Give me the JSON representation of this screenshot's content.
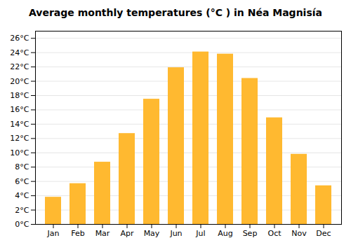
{
  "chart_data": {
    "type": "bar",
    "title": "Average monthly temperatures (°C ) in Néa Magnisía",
    "categories": [
      "Jan",
      "Feb",
      "Mar",
      "Apr",
      "May",
      "Jun",
      "Jul",
      "Aug",
      "Sep",
      "Oct",
      "Nov",
      "Dec"
    ],
    "values": [
      3.8,
      5.7,
      8.7,
      12.7,
      17.5,
      21.9,
      24.1,
      23.8,
      20.4,
      14.9,
      9.8,
      5.4
    ],
    "color": "#FFB930",
    "ylim": [
      0,
      27
    ],
    "yticks": [
      {
        "value": 0,
        "label": "0°C"
      },
      {
        "value": 2,
        "label": "2°C"
      },
      {
        "value": 4,
        "label": "4°C"
      },
      {
        "value": 6,
        "label": "6°C"
      },
      {
        "value": 8,
        "label": "8°C"
      },
      {
        "value": 10,
        "label": "10°C"
      },
      {
        "value": 12,
        "label": "12°C"
      },
      {
        "value": 14,
        "label": "14°C"
      },
      {
        "value": 16,
        "label": "16°C"
      },
      {
        "value": 18,
        "label": "18°C"
      },
      {
        "value": 20,
        "label": "20°C"
      },
      {
        "value": 22,
        "label": "22°C"
      },
      {
        "value": 24,
        "label": "24°C"
      },
      {
        "value": 26,
        "label": "26°C"
      }
    ],
    "grid": true
  }
}
